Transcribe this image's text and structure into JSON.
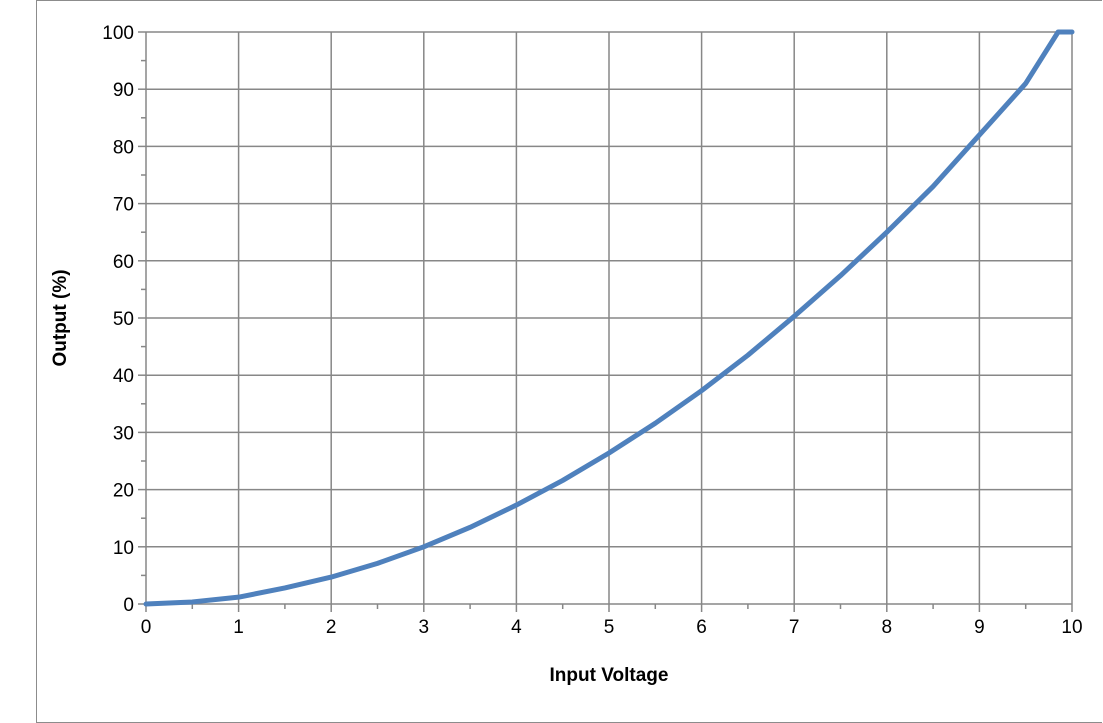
{
  "chart_data": {
    "type": "line",
    "title": "",
    "xlabel": "Input Voltage",
    "ylabel": "Output (%)",
    "xlim": [
      0,
      10
    ],
    "ylim": [
      0,
      100
    ],
    "x_ticks": [
      "0",
      "1",
      "2",
      "3",
      "4",
      "5",
      "6",
      "7",
      "8",
      "9",
      "10"
    ],
    "y_ticks": [
      "0",
      "10",
      "20",
      "30",
      "40",
      "50",
      "60",
      "70",
      "80",
      "90",
      "100"
    ],
    "grid": true,
    "legend": "none",
    "series": [
      {
        "color": "#4f81bd",
        "x": [
          0,
          0.5,
          1,
          1.5,
          2,
          2.5,
          3,
          3.5,
          4,
          4.5,
          5,
          5.5,
          6,
          6.5,
          7,
          7.5,
          8,
          8.5,
          9,
          9.5,
          9.85,
          10
        ],
        "y": [
          0,
          0.36,
          1.2,
          2.8,
          4.7,
          7.1,
          10.0,
          13.4,
          17.3,
          21.6,
          26.4,
          31.6,
          37.3,
          43.5,
          50.3,
          57.4,
          65.0,
          73.0,
          82.0,
          91.0,
          100,
          100
        ]
      }
    ]
  }
}
